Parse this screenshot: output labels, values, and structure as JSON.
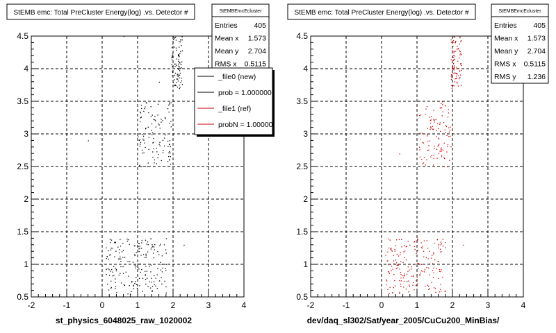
{
  "panels": [
    {
      "title": "StEMB emc: Total PreCluster Energy(log) .vs. Detector #",
      "xlabel": "st_physics_6048025_raw_1020002",
      "marker_color": "#000000",
      "stats": {
        "name": "StEMBEmcEcluster",
        "rows": [
          {
            "label": "Entries",
            "value": "405"
          },
          {
            "label": "Mean x",
            "value": "1.573"
          },
          {
            "label": "Mean y",
            "value": "2.704"
          },
          {
            "label": "RMS x",
            "value": "0.5115"
          }
        ]
      },
      "legend": {
        "entries": [
          {
            "label": "_file0 (new)",
            "color": "#000000"
          },
          {
            "label": "prob = 1.000000",
            "color": "#000000"
          },
          {
            "label": "_file1 (ref)",
            "color": "#cc0000"
          },
          {
            "label": "probN = 1.000000",
            "color": "#cc0000"
          }
        ]
      }
    },
    {
      "title": "StEMB emc: Total PreCluster Energy(log) .vs. Detector #",
      "xlabel": "dev/daq_sl302/Sat/year_2005/CuCu200_MinBias/",
      "marker_color": "#cc0000",
      "stats": {
        "name": "StEMBEmcEcluster",
        "rows": [
          {
            "label": "Entries",
            "value": "405"
          },
          {
            "label": "Mean x",
            "value": "1.573"
          },
          {
            "label": "Mean y",
            "value": "2.704"
          },
          {
            "label": "RMS x",
            "value": "0.5115"
          },
          {
            "label": "RMS y",
            "value": "1.236"
          }
        ]
      },
      "legend": null
    }
  ],
  "chart_data": [
    {
      "type": "scatter",
      "title": "StEMB emc: Total PreCluster Energy(log) .vs. Detector #",
      "xlabel": "st_physics_6048025_raw_1020002",
      "ylabel": "",
      "xlim": [
        -2,
        4
      ],
      "ylim": [
        0.5,
        4.5
      ],
      "xticks": [
        "-2",
        "-1",
        "0",
        "1",
        "2",
        "3",
        "4"
      ],
      "yticks": [
        "0.5",
        "1",
        "1.5",
        "2",
        "2.5",
        "3",
        "3.5",
        "4",
        "4.5"
      ],
      "grid": true,
      "entries": 405,
      "mean_x": 1.573,
      "mean_y": 2.704,
      "rms_x": 0.5115,
      "clusters": [
        {
          "x_range": [
            1.95,
            2.25
          ],
          "y_range": [
            3.7,
            4.5
          ],
          "count": 90
        },
        {
          "x_range": [
            1.0,
            1.95
          ],
          "y_range": [
            2.5,
            3.5
          ],
          "count": 110
        },
        {
          "x_range": [
            0.1,
            1.8
          ],
          "y_range": [
            0.55,
            1.4
          ],
          "count": 190
        }
      ],
      "isolated_points": [
        {
          "x": -0.4,
          "y": 2.9
        },
        {
          "x": 0.6,
          "y": 4.5
        },
        {
          "x": 2.3,
          "y": 1.3
        },
        {
          "x": 1.6,
          "y": 3.8
        }
      ]
    },
    {
      "type": "scatter",
      "title": "StEMB emc: Total PreCluster Energy(log) .vs. Detector #",
      "xlabel": "dev/daq_sl302/Sat/year_2005/CuCu200_MinBias/",
      "ylabel": "",
      "xlim": [
        -2,
        4
      ],
      "ylim": [
        0.5,
        4.5
      ],
      "xticks": [
        "-2",
        "-1",
        "0",
        "1",
        "2",
        "3",
        "4"
      ],
      "yticks": [
        "0.5",
        "1",
        "1.5",
        "2",
        "2.5",
        "3",
        "3.5",
        "4",
        "4.5"
      ],
      "grid": true,
      "entries": 405,
      "mean_x": 1.573,
      "mean_y": 2.704,
      "rms_x": 0.5115,
      "rms_y": 1.236,
      "clusters": [
        {
          "x_range": [
            1.95,
            2.25
          ],
          "y_range": [
            3.7,
            4.5
          ],
          "count": 90
        },
        {
          "x_range": [
            1.0,
            1.95
          ],
          "y_range": [
            2.5,
            3.5
          ],
          "count": 110
        },
        {
          "x_range": [
            0.1,
            1.8
          ],
          "y_range": [
            0.55,
            1.4
          ],
          "count": 190
        }
      ],
      "isolated_points": [
        {
          "x": 0.5,
          "y": 2.7
        },
        {
          "x": 2.3,
          "y": 1.3
        }
      ]
    }
  ]
}
